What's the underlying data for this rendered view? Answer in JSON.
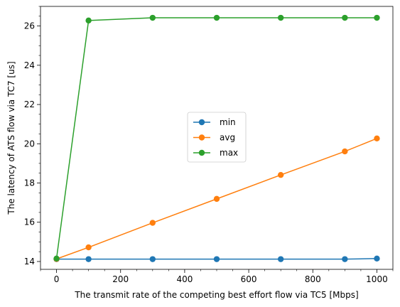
{
  "chart_data": {
    "type": "line",
    "xlabel": "The transmit rate of the competing best effort flow via TC5 [Mbps]",
    "ylabel": "The latency of ATS flow via TC7 [us]",
    "xlim": [
      -50,
      1050
    ],
    "ylim": [
      13.6,
      27.0
    ],
    "xticks": [
      0,
      200,
      400,
      600,
      800,
      1000
    ],
    "yticks": [
      14,
      16,
      18,
      20,
      22,
      24,
      26
    ],
    "x": [
      0,
      100,
      300,
      500,
      700,
      900,
      1000
    ],
    "series": [
      {
        "name": "min",
        "color": "#1f77b4",
        "values": [
          14.12,
          14.12,
          14.12,
          14.12,
          14.12,
          14.12,
          14.15
        ]
      },
      {
        "name": "avg",
        "color": "#ff7f0e",
        "values": [
          14.13,
          14.72,
          15.97,
          17.19,
          18.41,
          19.61,
          20.27
        ]
      },
      {
        "name": "max",
        "color": "#2ca02c",
        "values": [
          14.15,
          26.28,
          26.42,
          26.42,
          26.42,
          26.42,
          26.42
        ]
      }
    ],
    "legend_position": "center",
    "grid": false,
    "minor_ticks": true
  }
}
